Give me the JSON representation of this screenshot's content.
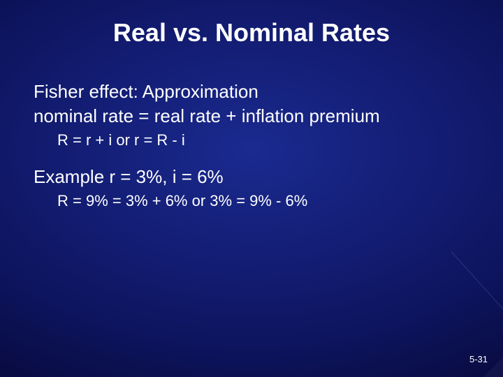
{
  "title": {
    "text": "Real vs. Nominal Rates",
    "fontsize": 36,
    "weight": "bold",
    "color": "#ffffff"
  },
  "lines": {
    "l1": "Fisher effect:  Approximation",
    "l2": "nominal rate = real rate + inflation premium",
    "sub1": "R = r + i  or  r = R - i",
    "l3": "Example  r = 3%, i = 6%",
    "sub2": "R = 9% = 3% + 6%  or  3% = 9% - 6%"
  },
  "fontsizes": {
    "body": 26,
    "sub": 22,
    "pagenum": 13
  },
  "colors": {
    "text": "#ffffff",
    "bg_center": "#1a2a8f",
    "bg_edge": "#030520"
  },
  "pagenum": "5-31"
}
